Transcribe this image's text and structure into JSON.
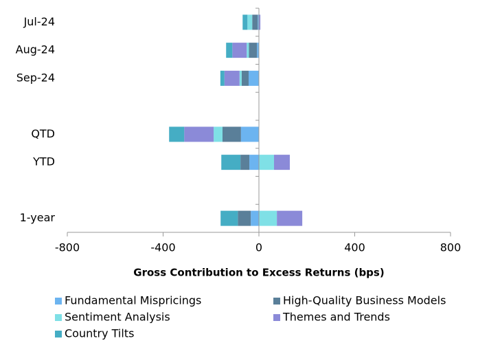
{
  "chart_data": {
    "type": "stacked_barh",
    "xlabel": "Gross Contribution to Excess Returns (bps)",
    "categories": [
      "Jul-24",
      "Aug-24",
      "Sep-24",
      null,
      "QTD",
      "YTD",
      null,
      "1-year"
    ],
    "series": [
      {
        "name": "Fundamental Mispricings",
        "color": "#6cb4f0",
        "values": [
          -5,
          -8,
          -43,
          null,
          -75,
          -40,
          null,
          -34
        ]
      },
      {
        "name": "High-Quality Business Models",
        "color": "#5a7f99",
        "values": [
          -23,
          -34,
          -29,
          null,
          -77,
          -37,
          null,
          -54
        ]
      },
      {
        "name": "Sentiment Analysis",
        "color": "#7fe0e6",
        "values": [
          -20,
          -9,
          -9,
          null,
          -37,
          63,
          null,
          75
        ]
      },
      {
        "name": "Themes and Trends",
        "color": "#8b8ad8",
        "values": [
          6,
          -60,
          -63,
          null,
          -123,
          66,
          null,
          106
        ]
      },
      {
        "name": "Country Tilts",
        "color": "#45adc4",
        "values": [
          -20,
          -26,
          -17,
          null,
          -63,
          -80,
          null,
          -72
        ]
      }
    ],
    "xlim": [
      -800,
      800
    ],
    "xticks": [
      -800,
      -400,
      0,
      400,
      800
    ],
    "legend": "bottom"
  }
}
